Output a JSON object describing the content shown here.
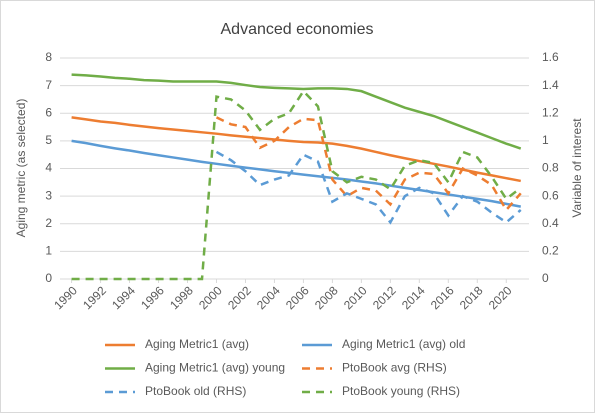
{
  "chart_data": {
    "type": "line",
    "title": "Advanced economies",
    "y_label": "Aging metric (as selected)",
    "y2_label": "Variable of interest",
    "x": [
      1990,
      1991,
      1992,
      1993,
      1994,
      1995,
      1996,
      1997,
      1998,
      1999,
      2000,
      2001,
      2002,
      2003,
      2004,
      2005,
      2006,
      2007,
      2008,
      2009,
      2010,
      2011,
      2012,
      2013,
      2014,
      2015,
      2016,
      2017,
      2018,
      2019,
      2020,
      2021
    ],
    "xlim": [
      1989.2,
      2021.5
    ],
    "xticks": [
      1990,
      1992,
      1994,
      1996,
      1998,
      2000,
      2002,
      2004,
      2006,
      2008,
      2010,
      2012,
      2014,
      2016,
      2018,
      2020
    ],
    "ylim": [
      0,
      8
    ],
    "yticks": [
      0,
      1,
      2,
      3,
      4,
      5,
      6,
      7,
      8
    ],
    "y2lim": [
      0,
      1.6
    ],
    "y2ticks": [
      0,
      0.2,
      0.4,
      0.6,
      0.8,
      1,
      1.2,
      1.4,
      1.6
    ],
    "grid": true,
    "legend": "bottom",
    "series": [
      {
        "name": "Aging Metric1 (avg)",
        "color": "#ed7d31",
        "dashed": false,
        "values": [
          5.85,
          5.78,
          5.7,
          5.65,
          5.58,
          5.52,
          5.46,
          5.41,
          5.36,
          5.31,
          5.26,
          5.2,
          5.15,
          5.1,
          5.05,
          5.0,
          4.96,
          4.94,
          4.9,
          4.82,
          4.72,
          4.6,
          4.48,
          4.37,
          4.27,
          4.17,
          4.07,
          3.96,
          3.85,
          3.75,
          3.65,
          3.55
        ]
      },
      {
        "name": "Aging Metric1 (avg) old",
        "color": "#5b9bd5",
        "dashed": false,
        "values": [
          5.0,
          4.92,
          4.82,
          4.73,
          4.65,
          4.56,
          4.48,
          4.4,
          4.32,
          4.24,
          4.17,
          4.1,
          4.03,
          3.97,
          3.9,
          3.84,
          3.78,
          3.72,
          3.66,
          3.6,
          3.53,
          3.46,
          3.38,
          3.3,
          3.22,
          3.14,
          3.06,
          2.98,
          2.9,
          2.82,
          2.72,
          2.62
        ]
      },
      {
        "name": "Aging Metric1 (avg) young",
        "color": "#70ad47",
        "dashed": false,
        "values": [
          7.4,
          7.37,
          7.33,
          7.28,
          7.25,
          7.2,
          7.18,
          7.15,
          7.15,
          7.15,
          7.15,
          7.1,
          7.02,
          6.95,
          6.92,
          6.9,
          6.88,
          6.9,
          6.9,
          6.88,
          6.8,
          6.6,
          6.4,
          6.2,
          6.05,
          5.9,
          5.7,
          5.5,
          5.3,
          5.1,
          4.9,
          4.72
        ]
      },
      {
        "name": "PtoBook avg (RHS)",
        "color": "#ed7d31",
        "dashed": true,
        "axis": "y2",
        "values": [
          null,
          null,
          null,
          null,
          null,
          null,
          null,
          null,
          null,
          null,
          1.17,
          1.12,
          1.1,
          0.95,
          1.0,
          1.1,
          1.16,
          1.15,
          0.72,
          0.6,
          0.66,
          0.64,
          0.54,
          0.72,
          0.77,
          0.76,
          0.62,
          0.8,
          0.75,
          0.68,
          0.5,
          0.62
        ]
      },
      {
        "name": "PtoBook old (RHS)",
        "color": "#5b9bd5",
        "dashed": true,
        "axis": "y2",
        "values": [
          null,
          null,
          null,
          null,
          null,
          null,
          null,
          null,
          null,
          null,
          0.92,
          0.86,
          0.78,
          0.68,
          0.72,
          0.75,
          0.9,
          0.85,
          0.56,
          0.62,
          0.58,
          0.54,
          0.41,
          0.6,
          0.66,
          0.62,
          0.46,
          0.6,
          0.56,
          0.48,
          0.41,
          0.5
        ]
      },
      {
        "name": "PtoBook young (RHS)",
        "color": "#70ad47",
        "dashed": true,
        "axis": "y2",
        "values": [
          0,
          0,
          0,
          0,
          0,
          0,
          0,
          0,
          0,
          0,
          1.32,
          1.3,
          1.22,
          1.08,
          1.16,
          1.2,
          1.36,
          1.25,
          0.78,
          0.7,
          0.74,
          0.72,
          0.65,
          0.82,
          0.86,
          0.84,
          0.7,
          0.92,
          0.88,
          0.74,
          0.58,
          0.66
        ]
      }
    ]
  }
}
